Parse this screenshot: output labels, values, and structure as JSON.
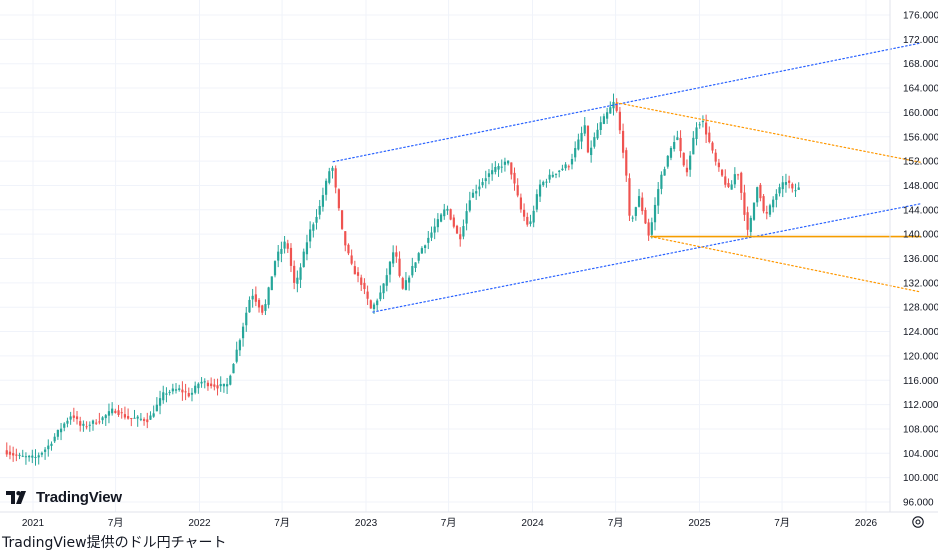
{
  "caption": "TradingView提供のドル円チャート",
  "logo": {
    "text": "TradingView",
    "icon": "tradingview-logo-icon"
  },
  "settings_icon": "gear-icon",
  "colors": {
    "up": "#26a69a",
    "down": "#ef5350",
    "channel": "#2962ff",
    "wedge": "#ff9800",
    "support": "#f59c00",
    "grid": "#f0f3fa"
  },
  "chart_data": {
    "type": "candlestick",
    "instrument": "USD/JPY",
    "period": "weekly",
    "ylim": [
      92,
      178
    ],
    "y_ticks": [
      "96.000",
      "100.000",
      "104.000",
      "108.000",
      "112.000",
      "116.000",
      "120.000",
      "124.000",
      "128.000",
      "132.000",
      "136.000",
      "140.000",
      "144.000",
      "148.000",
      "152.000",
      "156.000",
      "160.000",
      "164.000",
      "168.000",
      "172.000",
      "176.000"
    ],
    "x_ticks": [
      {
        "label": "2021",
        "date": "2021-01-01"
      },
      {
        "label": "7月",
        "date": "2021-07-01"
      },
      {
        "label": "2022",
        "date": "2022-01-01"
      },
      {
        "label": "7月",
        "date": "2022-07-01"
      },
      {
        "label": "2023",
        "date": "2023-01-01"
      },
      {
        "label": "7月",
        "date": "2023-07-01"
      },
      {
        "label": "2024",
        "date": "2024-01-01"
      },
      {
        "label": "7月",
        "date": "2024-07-01"
      },
      {
        "label": "2025",
        "date": "2025-01-01"
      },
      {
        "label": "7月",
        "date": "2025-07-01"
      },
      {
        "label": "2026",
        "date": "2026-01-01"
      }
    ],
    "price_path": [
      [
        "2020-11-01",
        104.5
      ],
      [
        "2020-12-01",
        103.5
      ],
      [
        "2021-01-08",
        103.2
      ],
      [
        "2021-02-05",
        105.0
      ],
      [
        "2021-03-05",
        108.0
      ],
      [
        "2021-03-31",
        110.5
      ],
      [
        "2021-04-20",
        108.3
      ],
      [
        "2021-06-01",
        109.5
      ],
      [
        "2021-07-01",
        111.2
      ],
      [
        "2021-08-01",
        109.8
      ],
      [
        "2021-09-15",
        109.5
      ],
      [
        "2021-10-20",
        114.0
      ],
      [
        "2021-11-20",
        114.5
      ],
      [
        "2021-12-15",
        113.5
      ],
      [
        "2022-01-05",
        115.8
      ],
      [
        "2022-02-15",
        115.0
      ],
      [
        "2022-03-05",
        115.0
      ],
      [
        "2022-03-31",
        122.0
      ],
      [
        "2022-04-28",
        130.5
      ],
      [
        "2022-05-25",
        127.0
      ],
      [
        "2022-06-20",
        136.0
      ],
      [
        "2022-07-14",
        139.0
      ],
      [
        "2022-08-02",
        131.0
      ],
      [
        "2022-09-01",
        140.0
      ],
      [
        "2022-09-25",
        144.5
      ],
      [
        "2022-10-21",
        151.8
      ],
      [
        "2022-11-15",
        139.5
      ],
      [
        "2022-12-05",
        134.5
      ],
      [
        "2022-12-25",
        132.0
      ],
      [
        "2023-01-16",
        127.5
      ],
      [
        "2023-02-10",
        131.0
      ],
      [
        "2023-03-08",
        137.8
      ],
      [
        "2023-03-24",
        130.5
      ],
      [
        "2023-05-01",
        137.0
      ],
      [
        "2023-05-30",
        140.5
      ],
      [
        "2023-06-30",
        144.5
      ],
      [
        "2023-07-28",
        139.0
      ],
      [
        "2023-08-20",
        146.0
      ],
      [
        "2023-09-25",
        149.5
      ],
      [
        "2023-10-31",
        151.5
      ],
      [
        "2023-11-13",
        151.8
      ],
      [
        "2023-12-10",
        144.0
      ],
      [
        "2023-12-28",
        141.0
      ],
      [
        "2024-01-20",
        148.0
      ],
      [
        "2024-02-20",
        150.0
      ],
      [
        "2024-03-25",
        151.5
      ],
      [
        "2024-04-29",
        158.0
      ],
      [
        "2024-05-05",
        153.0
      ],
      [
        "2024-05-28",
        157.5
      ],
      [
        "2024-07-03",
        161.9
      ],
      [
        "2024-07-25",
        152.0
      ],
      [
        "2024-08-05",
        141.7
      ],
      [
        "2024-08-25",
        146.0
      ],
      [
        "2024-09-16",
        139.6
      ],
      [
        "2024-10-10",
        149.0
      ],
      [
        "2024-11-15",
        156.5
      ],
      [
        "2024-12-05",
        149.5
      ],
      [
        "2024-12-28",
        157.8
      ],
      [
        "2025-01-10",
        158.8
      ],
      [
        "2025-02-10",
        151.5
      ],
      [
        "2025-03-11",
        147.0
      ],
      [
        "2025-03-28",
        151.0
      ],
      [
        "2025-04-21",
        139.9
      ],
      [
        "2025-05-12",
        148.5
      ],
      [
        "2025-05-28",
        142.5
      ],
      [
        "2025-06-20",
        146.5
      ],
      [
        "2025-07-15",
        149.0
      ],
      [
        "2025-07-28",
        147.0
      ],
      [
        "2025-08-08",
        147.5
      ]
    ],
    "lines": [
      {
        "name": "channel-upper",
        "style": "dotted",
        "color": "#2962ff",
        "from": [
          "2022-10-21",
          151.9
        ],
        "to": [
          "2026-05-01",
          171.4
        ]
      },
      {
        "name": "channel-lower",
        "style": "dotted",
        "color": "#2962ff",
        "from": [
          "2023-01-16",
          127.2
        ],
        "to": [
          "2026-05-01",
          145.0
        ]
      },
      {
        "name": "wedge-upper",
        "style": "dotted",
        "color": "#ff9800",
        "from": [
          "2024-07-03",
          161.6
        ],
        "to": [
          "2026-05-01",
          151.8
        ]
      },
      {
        "name": "wedge-lower",
        "style": "dotted",
        "color": "#ff9800",
        "from": [
          "2024-09-16",
          139.6
        ],
        "to": [
          "2026-05-01",
          130.5
        ]
      },
      {
        "name": "support",
        "style": "solid",
        "color": "#f59c00",
        "from": [
          "2024-09-16",
          139.6
        ],
        "to": [
          "2026-05-01",
          139.6
        ]
      }
    ]
  }
}
